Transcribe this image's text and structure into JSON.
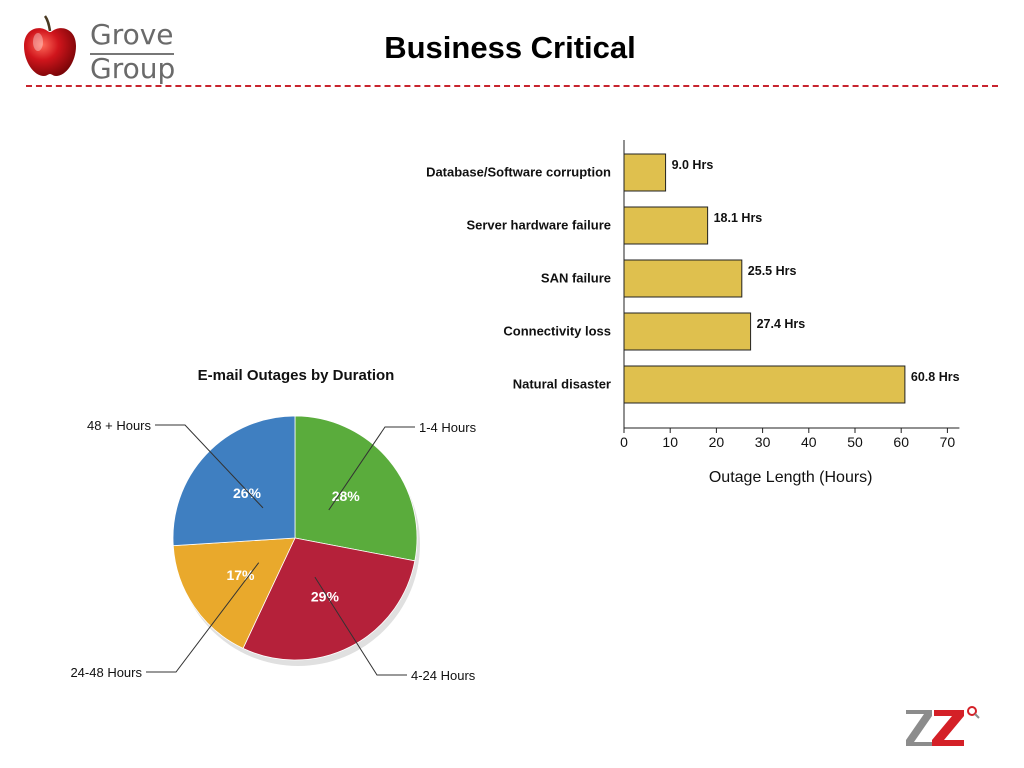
{
  "header": {
    "brand_line1": "Grove",
    "brand_line2": "Group",
    "title": "Business Critical"
  },
  "colors": {
    "divider": "#c8242e",
    "bar_fill": "#dfc04e",
    "corner_logo_red": "#d42027"
  },
  "icons": {
    "brand_logo": "red-apple-icon",
    "corner_logo": "ez-logo-icon"
  },
  "chart_data": [
    {
      "type": "bar",
      "orientation": "horizontal",
      "title": "",
      "xlabel": "Outage Length (Hours)",
      "ylabel": "",
      "categories": [
        "Database/Software corruption",
        "Server hardware failure",
        "SAN failure",
        "Connectivity loss",
        "Natural disaster"
      ],
      "values": [
        9.0,
        18.1,
        25.5,
        27.4,
        60.8
      ],
      "data_labels": [
        "9.0 Hrs",
        "18.1 Hrs",
        "25.5 Hrs",
        "27.4 Hrs",
        "60.8 Hrs"
      ],
      "xlim": [
        0,
        70
      ],
      "xticks": [
        0,
        10,
        20,
        30,
        40,
        50,
        60,
        70
      ],
      "grid": false,
      "color": "#dfc04e"
    },
    {
      "type": "pie",
      "title": "E-mail Outages by Duration",
      "slices": [
        {
          "label": "1-4 Hours",
          "value": 28,
          "value_label": "28%",
          "color": "#5aac3c"
        },
        {
          "label": "4-24 Hours",
          "value": 29,
          "value_label": "29%",
          "color": "#b5213a"
        },
        {
          "label": "24-48 Hours",
          "value": 17,
          "value_label": "17%",
          "color": "#e9a92c"
        },
        {
          "label": "48 + Hours",
          "value": 26,
          "value_label": "26%",
          "color": "#3f7fc1"
        }
      ]
    }
  ]
}
